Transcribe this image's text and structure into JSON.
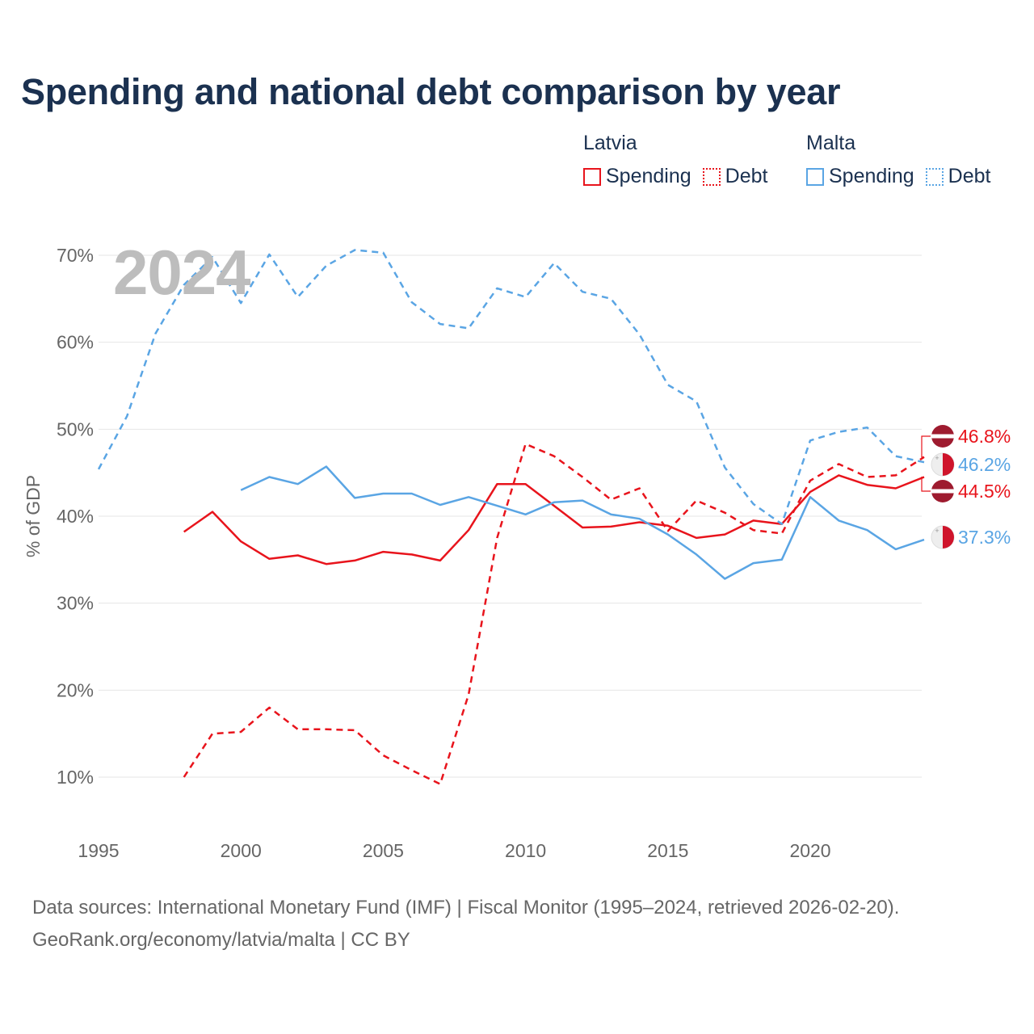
{
  "title": "Spending and national debt comparison by year",
  "legend": {
    "groups": [
      {
        "country": "Latvia",
        "color": "#e8141c",
        "spending_label": "Spending",
        "debt_label": "Debt"
      },
      {
        "country": "Malta",
        "color": "#5aa5e4",
        "spending_label": "Spending",
        "debt_label": "Debt"
      }
    ]
  },
  "year_label": "2024",
  "chart_data": {
    "type": "line",
    "title": "Spending and national debt comparison by year",
    "ylabel": "% of GDP",
    "xlabel": "",
    "xlim": [
      1995,
      2024
    ],
    "ylim": [
      10,
      70
    ],
    "x_ticks": [
      "1995",
      "2000",
      "2005",
      "2010",
      "2015",
      "2020"
    ],
    "y_ticks": [
      "10%",
      "20%",
      "30%",
      "40%",
      "50%",
      "60%",
      "70%"
    ],
    "series": [
      {
        "name": "Latvia Spending",
        "country": "Latvia",
        "metric": "Spending",
        "style": "solid",
        "color": "#e8141c",
        "x": [
          1998,
          1999,
          2000,
          2001,
          2002,
          2003,
          2004,
          2005,
          2006,
          2007,
          2008,
          2009,
          2010,
          2011,
          2012,
          2013,
          2014,
          2015,
          2016,
          2017,
          2018,
          2019,
          2020,
          2021,
          2022,
          2023,
          2024
        ],
        "values": [
          38.2,
          40.5,
          37.1,
          35.1,
          35.5,
          34.5,
          34.9,
          35.9,
          35.6,
          34.9,
          38.4,
          43.7,
          43.7,
          41.2,
          38.7,
          38.8,
          39.3,
          38.9,
          37.5,
          37.9,
          39.5,
          39.1,
          42.8,
          44.7,
          43.6,
          43.2,
          44.5
        ]
      },
      {
        "name": "Latvia Debt",
        "country": "Latvia",
        "metric": "Debt",
        "style": "dashed",
        "color": "#e8141c",
        "x": [
          1998,
          1999,
          2000,
          2001,
          2002,
          2003,
          2004,
          2005,
          2006,
          2007,
          2008,
          2009,
          2010,
          2011,
          2012,
          2013,
          2014,
          2015,
          2016,
          2017,
          2018,
          2019,
          2020,
          2021,
          2022,
          2023,
          2024
        ],
        "values": [
          10.0,
          15.0,
          15.2,
          18.0,
          15.5,
          15.5,
          15.4,
          12.5,
          10.8,
          9.2,
          19.5,
          37.5,
          48.3,
          46.9,
          44.5,
          41.9,
          43.2,
          38.3,
          41.8,
          40.4,
          38.4,
          38.0,
          44.1,
          46.0,
          44.5,
          44.7,
          46.8
        ]
      },
      {
        "name": "Malta Spending",
        "country": "Malta",
        "metric": "Spending",
        "style": "solid",
        "color": "#5aa5e4",
        "x": [
          2000,
          2001,
          2002,
          2003,
          2004,
          2005,
          2006,
          2007,
          2008,
          2009,
          2010,
          2011,
          2012,
          2013,
          2014,
          2015,
          2016,
          2017,
          2018,
          2019,
          2020,
          2021,
          2022,
          2023,
          2024
        ],
        "values": [
          43.0,
          44.5,
          43.7,
          45.7,
          42.1,
          42.6,
          42.6,
          41.3,
          42.2,
          41.2,
          40.2,
          41.6,
          41.8,
          40.2,
          39.7,
          37.9,
          35.6,
          32.8,
          34.6,
          35.0,
          42.2,
          39.5,
          38.4,
          36.2,
          37.3
        ]
      },
      {
        "name": "Malta Debt",
        "country": "Malta",
        "metric": "Debt",
        "style": "dashed",
        "color": "#5aa5e4",
        "x": [
          1995,
          1996,
          1997,
          1998,
          1999,
          2000,
          2001,
          2002,
          2003,
          2004,
          2005,
          2006,
          2007,
          2008,
          2009,
          2010,
          2011,
          2012,
          2013,
          2014,
          2015,
          2016,
          2017,
          2018,
          2019,
          2020,
          2021,
          2022,
          2023,
          2024
        ],
        "values": [
          45.4,
          51.5,
          61.0,
          66.6,
          69.8,
          64.5,
          70.1,
          65.2,
          68.8,
          70.6,
          70.3,
          64.6,
          62.1,
          61.6,
          66.2,
          65.2,
          69.1,
          65.8,
          65.0,
          60.9,
          55.1,
          53.2,
          45.6,
          41.4,
          39.1,
          48.7,
          49.7,
          50.2,
          46.9,
          46.2
        ]
      }
    ],
    "end_labels": [
      {
        "text": "46.8%",
        "series": "Latvia Debt",
        "flag": "latvia-flag"
      },
      {
        "text": "46.2%",
        "series": "Malta Debt",
        "flag": "malta-flag"
      },
      {
        "text": "44.5%",
        "series": "Latvia Spending",
        "flag": "latvia-flag"
      },
      {
        "text": "37.3%",
        "series": "Malta Spending",
        "flag": "malta-flag"
      }
    ]
  },
  "footer": {
    "line1": "Data sources: International Monetary Fund (IMF) | Fiscal Monitor (1995–2024, retrieved 2026-02-20).",
    "line2": "GeoRank.org/economy/latvia/malta | CC BY"
  }
}
